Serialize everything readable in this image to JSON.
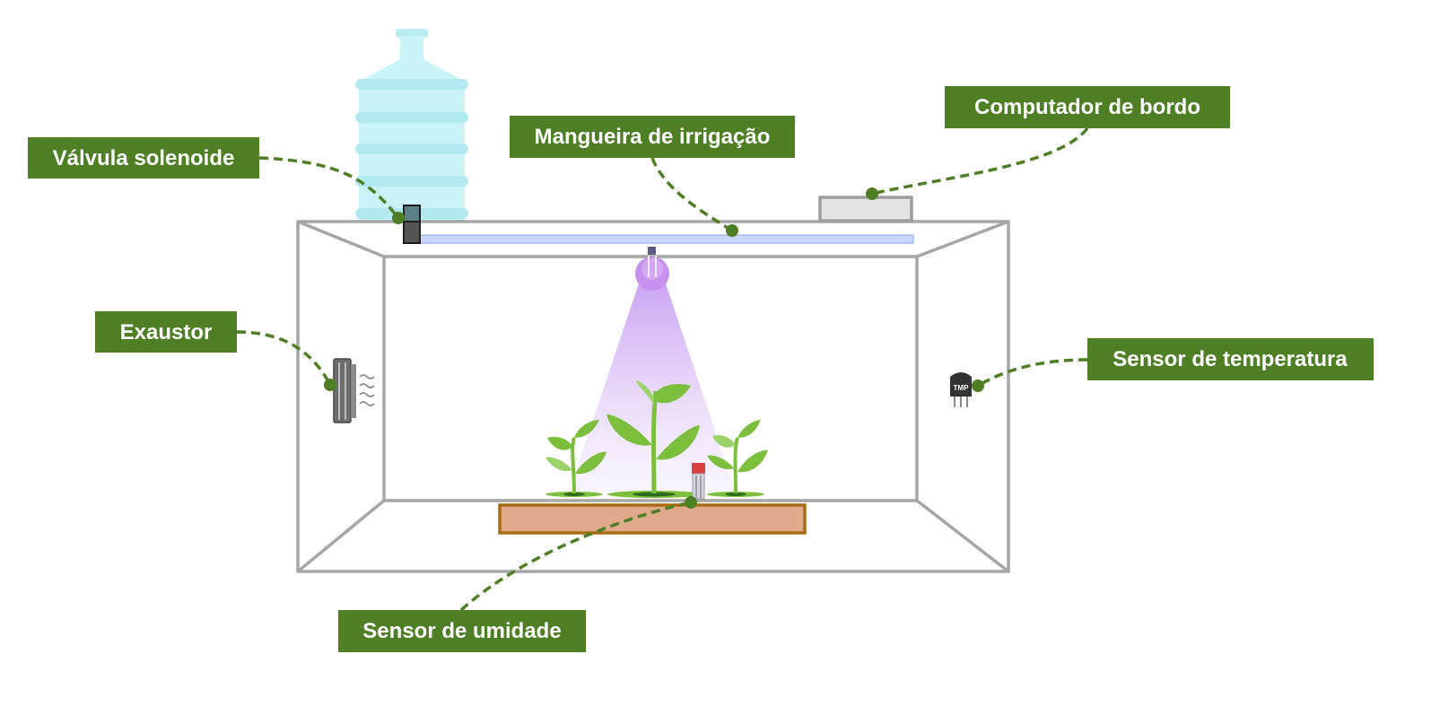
{
  "labels": {
    "valvula": "Válvula solenoide",
    "mangueira": "Mangueira de irrigação",
    "computador": "Computador de bordo",
    "exaustor": "Exaustor",
    "temperatura": "Sensor de temperatura",
    "umidade": "Sensor de umidade"
  },
  "sensor_chip_text": "TMP",
  "colors": {
    "label_bg": "#4e7f24",
    "label_text": "#ffffff",
    "frame": "#a6a6a6",
    "water": "#b9eef2",
    "hose": "#c9d6fb",
    "light": "#c69af2",
    "soil": "#e0aa8a",
    "soil_border": "#a86d12",
    "leaf": "#7cbf3c"
  },
  "icons": [
    "water-bottle-icon",
    "solenoid-valve-icon",
    "hose-icon",
    "computer-icon",
    "exhaust-fan-icon",
    "temperature-sensor-icon",
    "grow-light-icon",
    "plant-icon",
    "humidity-sensor-icon",
    "soil-tray-icon"
  ]
}
